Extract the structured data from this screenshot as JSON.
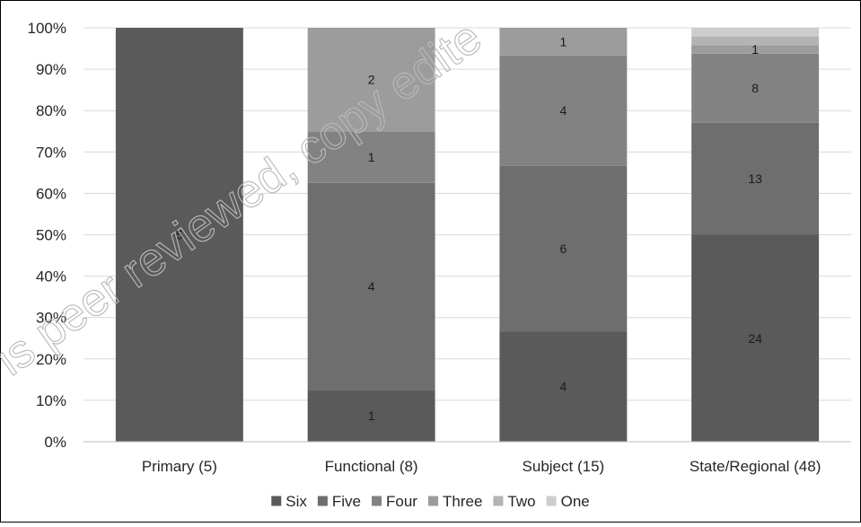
{
  "chart_data": {
    "type": "bar",
    "stacked": true,
    "normalized_percent": true,
    "categories": [
      "Primary (5)",
      "Functional (8)",
      "Subject (15)",
      "State/Regional (48)"
    ],
    "series": [
      {
        "name": "Six",
        "values": [
          5,
          1,
          4,
          24
        ],
        "color": "#5a5a5a"
      },
      {
        "name": "Five",
        "values": [
          0,
          4,
          6,
          13
        ],
        "color": "#6e6e6e"
      },
      {
        "name": "Four",
        "values": [
          0,
          1,
          4,
          8
        ],
        "color": "#828282"
      },
      {
        "name": "Three",
        "values": [
          0,
          2,
          1,
          1
        ],
        "color": "#9c9c9c"
      },
      {
        "name": "Two",
        "values": [
          0,
          0,
          0,
          1
        ],
        "color": "#b4b4b4"
      },
      {
        "name": "One",
        "values": [
          0,
          0,
          0,
          1
        ],
        "color": "#cdcdcd"
      }
    ],
    "shown_data_labels": [
      [
        "5",
        "1",
        "4",
        "24"
      ],
      [
        "",
        "4",
        "6",
        "13"
      ],
      [
        "",
        "1",
        "4",
        "8"
      ],
      [
        "",
        "2",
        "1",
        "1"
      ],
      [
        "",
        "",
        "",
        ""
      ],
      [
        "",
        "",
        "",
        ""
      ]
    ],
    "y_tick_labels": [
      "0%",
      "10%",
      "20%",
      "30%",
      "40%",
      "50%",
      "60%",
      "70%",
      "80%",
      "90%",
      "100%"
    ],
    "ylim": [
      0,
      100
    ],
    "grid": true,
    "legend_position": "bottom",
    "title": "",
    "xlabel": "",
    "ylabel": ""
  },
  "watermark_text": "is peer reviewed, copy edite"
}
